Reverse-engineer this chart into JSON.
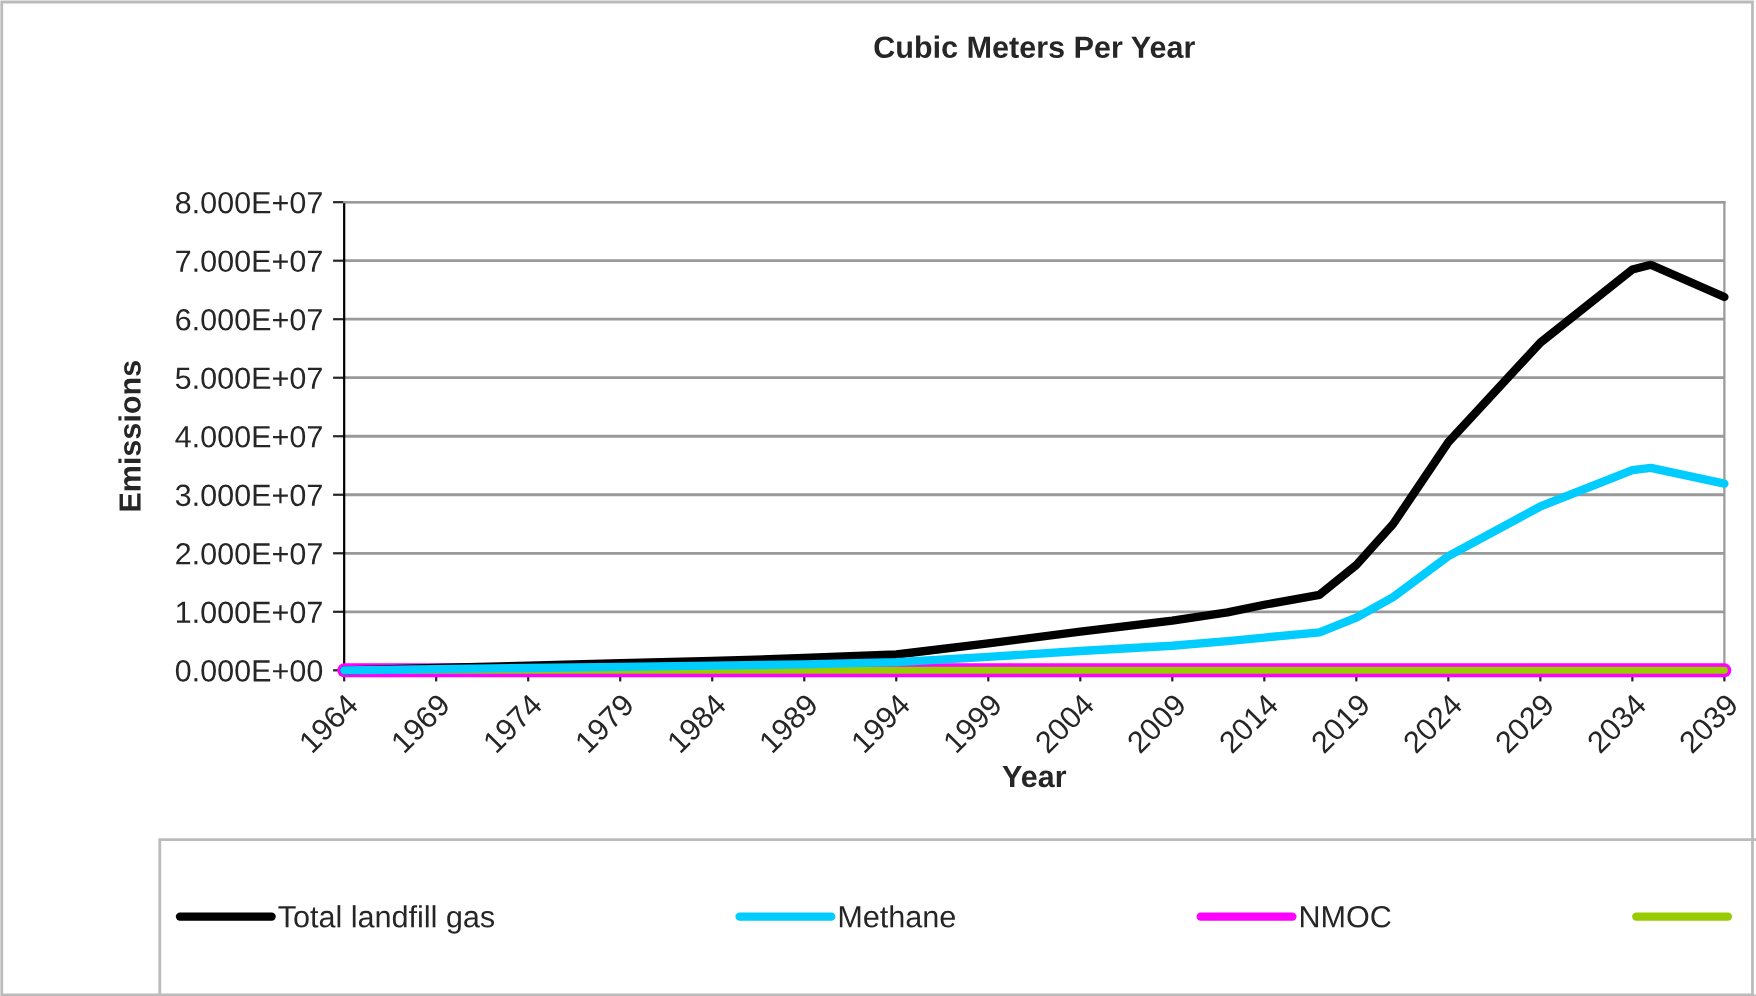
{
  "chart_data": {
    "type": "line",
    "title": "Cubic Meters Per Year",
    "xlabel": "Year",
    "ylabel": "Emissions",
    "x": [
      1964,
      1969,
      1974,
      1979,
      1984,
      1989,
      1994,
      1999,
      2004,
      2009,
      2012,
      2014,
      2017,
      2019,
      2021,
      2024,
      2029,
      2034,
      2035,
      2039
    ],
    "series": [
      {
        "name": "Total landfill gas",
        "color": "#000000",
        "values": [
          0,
          400000,
          800000,
          1200000,
          1600000,
          2100000,
          2700000,
          4600000,
          6600000,
          8500000,
          9900000,
          11200000,
          12900000,
          18000000,
          25000000,
          39000000,
          56000000,
          68500000,
          69300000,
          63800000
        ]
      },
      {
        "name": "Methane",
        "color": "#00ccff",
        "values": [
          0,
          200000,
          400000,
          600000,
          800000,
          1000000,
          1400000,
          2300000,
          3300000,
          4200000,
          5000000,
          5600000,
          6500000,
          9000000,
          12500000,
          19500000,
          28000000,
          34200000,
          34600000,
          31900000
        ]
      },
      {
        "name": "NMOC",
        "color": "#ff00ff",
        "values": [
          0,
          0,
          0,
          0,
          0,
          0,
          0,
          0,
          0,
          0,
          0,
          0,
          0,
          0,
          0,
          0,
          0,
          0,
          0,
          0
        ]
      },
      {
        "color": "#99cc00",
        "values": [
          0,
          0,
          0,
          0,
          0,
          0,
          0,
          0,
          0,
          0,
          0,
          0,
          0,
          0,
          0,
          0,
          0,
          0,
          0,
          0
        ]
      }
    ],
    "xlim": [
      1964,
      2039
    ],
    "xticks": [
      1964,
      1969,
      1974,
      1979,
      1984,
      1989,
      1994,
      1999,
      2004,
      2009,
      2014,
      2019,
      2024,
      2029,
      2034,
      2039
    ],
    "ylim": [
      0,
      80000000
    ],
    "yticks": [
      {
        "value": 0,
        "label": "0.000E+00"
      },
      {
        "value": 10000000,
        "label": "1.000E+07"
      },
      {
        "value": 20000000,
        "label": "2.000E+07"
      },
      {
        "value": 30000000,
        "label": "3.000E+07"
      },
      {
        "value": 40000000,
        "label": "4.000E+07"
      },
      {
        "value": 50000000,
        "label": "5.000E+07"
      },
      {
        "value": 60000000,
        "label": "6.000E+07"
      },
      {
        "value": 70000000,
        "label": "7.000E+07"
      },
      {
        "value": 80000000,
        "label": "8.000E+07"
      }
    ],
    "grid": "y",
    "legend": "bottom",
    "marker": "none",
    "line_style": "solid"
  }
}
